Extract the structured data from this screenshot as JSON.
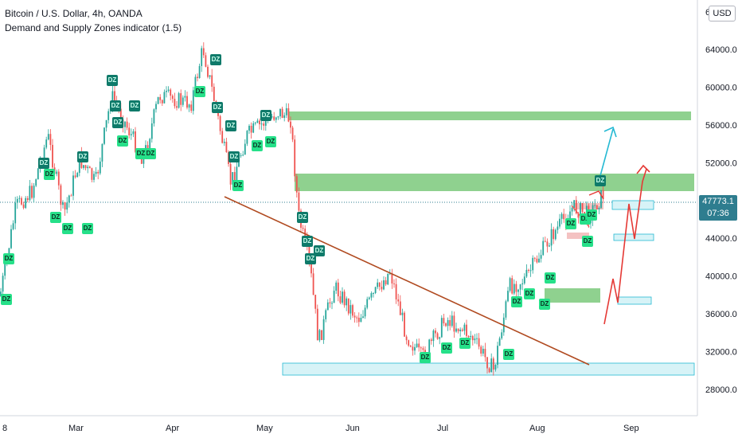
{
  "legend": {
    "symbol": "Bitcoin / U.S. Dollar, 4h, OANDA",
    "indicator": "Demand and Supply Zones indicator (1.5)"
  },
  "currency": "USD",
  "price_axis": {
    "top_partial": "6",
    "ticks": [
      "64000.0",
      "60000.0",
      "56000.0",
      "52000.0",
      "48000.0",
      "44000.0",
      "40000.0",
      "36000.0",
      "32000.0",
      "28000.0"
    ]
  },
  "time_axis": {
    "labels": [
      "8",
      "Mar",
      "Apr",
      "May",
      "Jun",
      "Jul",
      "Aug",
      "Sep"
    ]
  },
  "current_price": {
    "value": "47773.1",
    "countdown": "07:36"
  },
  "zone_label": "DZ",
  "colors": {
    "supply_zone": "#8fd18f",
    "demand_zone": "#d7f3f7",
    "trendline": "#b04a20",
    "projection_blue": "#25b9d3",
    "projection_red": "#e53935",
    "candle_up": "#26a69a",
    "candle_down": "#ef5350",
    "badge": "#2e7d8f"
  }
}
